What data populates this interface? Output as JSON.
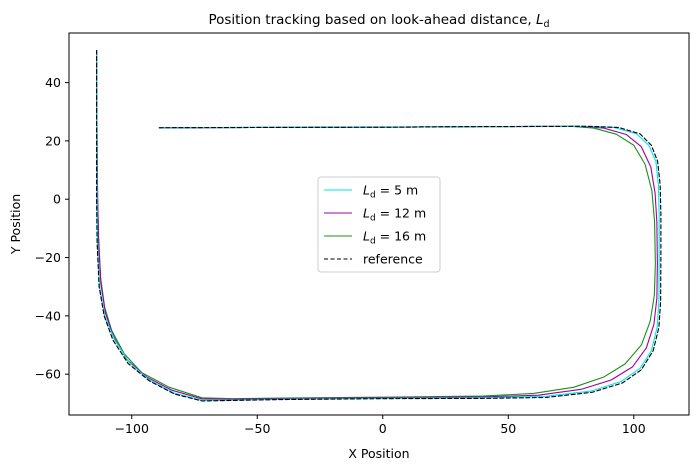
{
  "chart_data": {
    "type": "line",
    "title_text": "Position tracking based on look-ahead distance, ",
    "title_symbol": "L",
    "title_subscript": "d",
    "xlabel": "X Position",
    "ylabel": "Y Position",
    "xlim": [
      -125,
      122
    ],
    "ylim": [
      -74,
      57
    ],
    "xticks": [
      -100,
      -50,
      0,
      50,
      100
    ],
    "yticks": [
      -60,
      -40,
      -20,
      0,
      20,
      40
    ],
    "xtick_labels": [
      "−100",
      "−50",
      "0",
      "50",
      "100"
    ],
    "ytick_labels": [
      "−60",
      "−40",
      "−20",
      "0",
      "20",
      "40"
    ],
    "grid": false,
    "legend_position": "center",
    "series": [
      {
        "name": "L_d = 5 m",
        "legend_symbol": "L",
        "legend_sub": "d",
        "legend_rest": " = 5 m",
        "color": "#00e5ee",
        "dash": "",
        "points": [
          [
            -89,
            24.5
          ],
          [
            -50,
            24.6
          ],
          [
            0,
            24.7
          ],
          [
            40,
            24.9
          ],
          [
            80,
            25.0
          ],
          [
            92,
            24.6
          ],
          [
            101,
            22.5
          ],
          [
            106,
            18.5
          ],
          [
            108.8,
            13
          ],
          [
            109.8,
            5
          ],
          [
            110.1,
            -5
          ],
          [
            110.1,
            -20
          ],
          [
            110.0,
            -35
          ],
          [
            109.3,
            -44
          ],
          [
            107,
            -52
          ],
          [
            102.5,
            -58
          ],
          [
            95,
            -62.5
          ],
          [
            83,
            -65.8
          ],
          [
            65,
            -67.6
          ],
          [
            40,
            -68.1
          ],
          [
            0,
            -68.3
          ],
          [
            -40,
            -68.6
          ],
          [
            -60,
            -68.9
          ],
          [
            -72,
            -69.0
          ],
          [
            -83,
            -66.5
          ],
          [
            -93,
            -62
          ],
          [
            -101,
            -56
          ],
          [
            -107,
            -48
          ],
          [
            -110.8,
            -40
          ],
          [
            -112.8,
            -30
          ],
          [
            -113.6,
            -15
          ],
          [
            -113.8,
            0
          ],
          [
            -113.9,
            20
          ],
          [
            -114,
            40
          ],
          [
            -114,
            51
          ]
        ]
      },
      {
        "name": "L_d = 12 m",
        "legend_symbol": "L",
        "legend_sub": "d",
        "legend_rest": " = 12 m",
        "color": "#a000a0",
        "dash": "",
        "points": [
          [
            -89,
            24.5
          ],
          [
            -50,
            24.6
          ],
          [
            0,
            24.7
          ],
          [
            40,
            24.9
          ],
          [
            78,
            25.0
          ],
          [
            88,
            24.4
          ],
          [
            97,
            22.2
          ],
          [
            103,
            18
          ],
          [
            106.8,
            11
          ],
          [
            108.5,
            2
          ],
          [
            109.2,
            -8
          ],
          [
            109.4,
            -22
          ],
          [
            109.2,
            -34
          ],
          [
            108.0,
            -43
          ],
          [
            105,
            -51
          ],
          [
            99.5,
            -57.5
          ],
          [
            91,
            -62
          ],
          [
            79,
            -65.2
          ],
          [
            62,
            -67.2
          ],
          [
            40,
            -67.8
          ],
          [
            0,
            -68.1
          ],
          [
            -40,
            -68.4
          ],
          [
            -60,
            -68.6
          ],
          [
            -72,
            -68.5
          ],
          [
            -84,
            -65.5
          ],
          [
            -94,
            -61
          ],
          [
            -102,
            -55
          ],
          [
            -107.3,
            -47
          ],
          [
            -110.5,
            -39
          ],
          [
            -112.3,
            -29
          ],
          [
            -113.2,
            -15
          ],
          [
            -113.6,
            0
          ],
          [
            -113.8,
            20
          ],
          [
            -114,
            40
          ],
          [
            -114,
            51
          ]
        ]
      },
      {
        "name": "L_d = 16 m",
        "legend_symbol": "L",
        "legend_sub": "d",
        "legend_rest": " = 16 m",
        "color": "#1a8f1a",
        "dash": "",
        "points": [
          [
            -89,
            24.5
          ],
          [
            -50,
            24.6
          ],
          [
            0,
            24.7
          ],
          [
            40,
            24.9
          ],
          [
            75,
            25.0
          ],
          [
            84,
            24.4
          ],
          [
            93,
            22.3
          ],
          [
            100,
            18.5
          ],
          [
            104.5,
            12
          ],
          [
            107.2,
            3
          ],
          [
            108.3,
            -8
          ],
          [
            108.6,
            -22
          ],
          [
            108.2,
            -33
          ],
          [
            106.5,
            -42
          ],
          [
            103,
            -50
          ],
          [
            96.5,
            -56.5
          ],
          [
            88,
            -61
          ],
          [
            76,
            -64.5
          ],
          [
            60,
            -66.6
          ],
          [
            40,
            -67.5
          ],
          [
            0,
            -67.9
          ],
          [
            -40,
            -68.2
          ],
          [
            -60,
            -68.4
          ],
          [
            -72,
            -68.1
          ],
          [
            -85,
            -64.5
          ],
          [
            -96,
            -59.5
          ],
          [
            -103,
            -53
          ],
          [
            -108,
            -45
          ],
          [
            -110.8,
            -37
          ],
          [
            -112.4,
            -27
          ],
          [
            -113.2,
            -13
          ],
          [
            -113.6,
            0
          ],
          [
            -113.8,
            20
          ],
          [
            -114,
            40
          ],
          [
            -114,
            51
          ]
        ]
      },
      {
        "name": "reference",
        "legend_symbol": "",
        "legend_sub": "",
        "legend_rest": "reference",
        "color": "#000000",
        "dash": "4,2.5",
        "points": [
          [
            -89,
            24.5
          ],
          [
            -50,
            24.6
          ],
          [
            0,
            24.7
          ],
          [
            40,
            24.9
          ],
          [
            82,
            25.0
          ],
          [
            94,
            24.6
          ],
          [
            102.5,
            22.4
          ],
          [
            107,
            18.5
          ],
          [
            109.5,
            13
          ],
          [
            110.5,
            5
          ],
          [
            110.8,
            -5
          ],
          [
            110.8,
            -20
          ],
          [
            110.7,
            -35
          ],
          [
            110,
            -44
          ],
          [
            107.7,
            -52
          ],
          [
            103,
            -58.5
          ],
          [
            95.5,
            -63
          ],
          [
            83.5,
            -66.2
          ],
          [
            65,
            -68.0
          ],
          [
            40,
            -68.3
          ],
          [
            0,
            -68.4
          ],
          [
            -40,
            -68.7
          ],
          [
            -60,
            -69.0
          ],
          [
            -72,
            -69.2
          ],
          [
            -83,
            -66.8
          ],
          [
            -93,
            -62.3
          ],
          [
            -101.5,
            -56.3
          ],
          [
            -107.5,
            -48.3
          ],
          [
            -111,
            -40
          ],
          [
            -113.0,
            -30
          ],
          [
            -113.8,
            -15
          ],
          [
            -114,
            0
          ],
          [
            -114,
            20
          ],
          [
            -114,
            40
          ],
          [
            -114,
            51
          ]
        ]
      }
    ]
  }
}
